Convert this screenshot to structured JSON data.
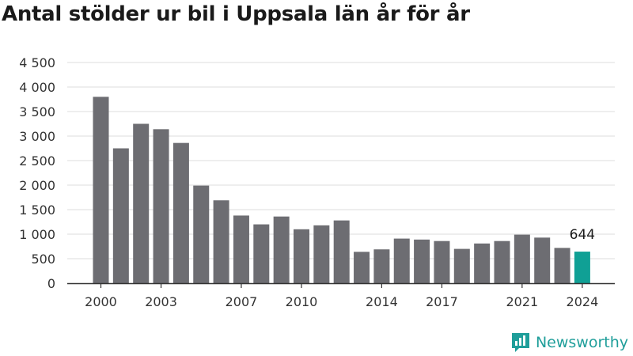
{
  "title": "Antal stölder ur bil i Uppsala län år för år",
  "brand": {
    "name": "Newsworthy",
    "color": "#1f9e9a"
  },
  "colors": {
    "bar": "#6d6d72",
    "highlight": "#10a095",
    "grid": "#dddddd",
    "axis": "#333333"
  },
  "chart_data": {
    "type": "bar",
    "categories": [
      "2000",
      "2001",
      "2002",
      "2003",
      "2004",
      "2005",
      "2006",
      "2007",
      "2008",
      "2009",
      "2010",
      "2011",
      "2012",
      "2013",
      "2014",
      "2015",
      "2016",
      "2017",
      "2018",
      "2019",
      "2020",
      "2021",
      "2022",
      "2023",
      "2024"
    ],
    "x_tick_labels": [
      "2000",
      "2003",
      "2007",
      "2010",
      "2014",
      "2017",
      "2021",
      "2024"
    ],
    "values": [
      3800,
      2750,
      3250,
      3140,
      2860,
      1990,
      1690,
      1380,
      1200,
      1360,
      1100,
      1180,
      1280,
      640,
      690,
      910,
      890,
      860,
      700,
      810,
      860,
      990,
      930,
      720,
      644
    ],
    "highlight_index": 24,
    "highlight_label": "644",
    "y_ticks": [
      0,
      500,
      1000,
      1500,
      2000,
      2500,
      3000,
      3500,
      4000,
      4500
    ],
    "y_tick_labels": [
      "0",
      "500",
      "1 000",
      "1 500",
      "2 000",
      "2 500",
      "3 000",
      "3 500",
      "4 000",
      "4 500"
    ],
    "ylim": [
      0,
      4500
    ],
    "grid": true,
    "title": "Antal stölder ur bil i Uppsala län år för år",
    "xlabel": "",
    "ylabel": ""
  }
}
